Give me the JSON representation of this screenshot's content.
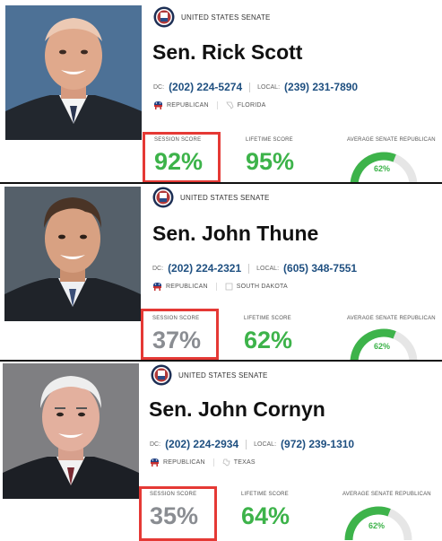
{
  "senators": [
    {
      "org": "UNITED STATES SENATE",
      "name": "Sen. Rick Scott",
      "dc_label": "DC:",
      "dc_phone": "(202) 224-5274",
      "local_label": "LOCAL:",
      "local_phone": "(239) 231-7890",
      "party": "REPUBLICAN",
      "state": "FLORIDA",
      "session_label": "SESSION SCORE",
      "session_score": "92%",
      "lifetime_label": "LIFETIME SCORE",
      "lifetime_score": "95%",
      "avg_label": "AVERAGE SENATE REPUBLICAN",
      "avg_score": "62%",
      "avg_fraction": 0.62,
      "session_color": "green"
    },
    {
      "org": "UNITED STATES SENATE",
      "name": "Sen. John Thune",
      "dc_label": "DC:",
      "dc_phone": "(202) 224-2321",
      "local_label": "LOCAL:",
      "local_phone": "(605) 348-7551",
      "party": "REPUBLICAN",
      "state": "SOUTH DAKOTA",
      "session_label": "SESSION SCORE",
      "session_score": "37%",
      "lifetime_label": "LIFETIME SCORE",
      "lifetime_score": "62%",
      "avg_label": "AVERAGE SENATE REPUBLICAN",
      "avg_score": "62%",
      "avg_fraction": 0.62,
      "session_color": "gray"
    },
    {
      "org": "UNITED STATES SENATE",
      "name": "Sen. John Cornyn",
      "dc_label": "DC:",
      "dc_phone": "(202) 224-2934",
      "local_label": "LOCAL:",
      "local_phone": "(972) 239-1310",
      "party": "REPUBLICAN",
      "state": "TEXAS",
      "session_label": "SESSION SCORE",
      "session_score": "35%",
      "lifetime_label": "LIFETIME SCORE",
      "lifetime_score": "64%",
      "avg_label": "AVERAGE SENATE REPUBLICAN",
      "avg_score": "62%",
      "avg_fraction": 0.62,
      "session_color": "gray"
    }
  ],
  "colors": {
    "score_green": "#3db34a",
    "score_gray": "#8a8d92",
    "phone_blue": "#1e4f80",
    "highlight_red": "#e53935",
    "gauge_track": "#e6e6e6"
  },
  "icons": {
    "seal": "senate-seal-icon",
    "party": "republican-elephant-icon",
    "state": "state-outline-icon"
  }
}
